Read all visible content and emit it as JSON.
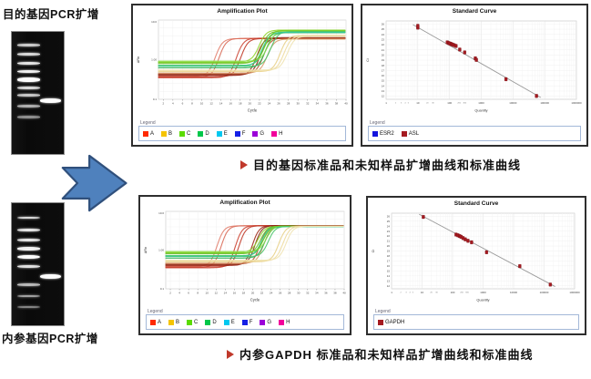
{
  "strings": {
    "legend_title": "Legend"
  },
  "arrow": {
    "fill": "#4f81bd",
    "stroke": "#30507c"
  },
  "gels": {
    "top": {
      "label": "目的基因PCR扩增",
      "ladder": [
        {
          "y": 10,
          "h": 2.5,
          "o": 0.8
        },
        {
          "y": 17.5,
          "h": 2.5,
          "o": 0.85
        },
        {
          "y": 24.5,
          "h": 3,
          "o": 0.9
        },
        {
          "y": 31.5,
          "h": 3,
          "o": 0.95
        },
        {
          "y": 37.5,
          "h": 4.5,
          "o": 1
        },
        {
          "y": 44.5,
          "h": 3,
          "o": 0.85
        },
        {
          "y": 51,
          "h": 2.5,
          "o": 0.78
        },
        {
          "y": 60,
          "h": 2.5,
          "o": 0.68
        },
        {
          "y": 69,
          "h": 2.5,
          "o": 0.55
        }
      ],
      "sample": {
        "y": 54.5,
        "h": 4.5,
        "o": 1
      }
    },
    "bottom": {
      "label": "内参基因PCR扩增",
      "ladder": [
        {
          "y": 11,
          "h": 2.5,
          "o": 0.85
        },
        {
          "y": 21,
          "h": 3,
          "o": 0.9
        },
        {
          "y": 29,
          "h": 3,
          "o": 0.9
        },
        {
          "y": 36,
          "h": 3.5,
          "o": 0.95
        },
        {
          "y": 42.5,
          "h": 4.5,
          "o": 1
        },
        {
          "y": 51,
          "h": 3,
          "o": 0.88
        },
        {
          "y": 66,
          "h": 2.5,
          "o": 0.72
        },
        {
          "y": 75,
          "h": 2.5,
          "o": 0.62
        },
        {
          "y": 84,
          "h": 2.5,
          "o": 0.5
        }
      ],
      "sample": {
        "y": 58,
        "h": 5,
        "o": 1
      }
    }
  },
  "captions": [
    {
      "text": "目的基因标准品和未知样品扩增曲线和标准曲线"
    },
    {
      "text": "内参GAPDH 标准品和未知样品扩增曲线和标准曲线"
    }
  ],
  "chart_data": [
    {
      "type": "line",
      "title": "Amplification Plot",
      "xlabel": "Cycle",
      "ylabel": "ΔRn",
      "xlim": [
        1,
        40
      ],
      "x_ticks": [
        2,
        4,
        6,
        8,
        10,
        12,
        14,
        16,
        18,
        20,
        22,
        24,
        26,
        28,
        30,
        32,
        34,
        36,
        38,
        40
      ],
      "y_ticks": [
        "10.0",
        "1.00",
        "0.1"
      ],
      "ylog_range": [
        0.1,
        10
      ],
      "series": [
        {
          "color": "#e2806e",
          "ct": 12.8,
          "base": 0.38,
          "plateau": 3.4
        },
        {
          "color": "#d96a58",
          "ct": 13.6,
          "base": 0.36,
          "plateau": 3.45
        },
        {
          "color": "#cc4433",
          "ct": 17.2,
          "base": 0.35,
          "plateau": 3.5
        },
        {
          "color": "#c03a28",
          "ct": 18.1,
          "base": 0.37,
          "plateau": 3.42
        },
        {
          "color": "#9e2a1a",
          "ct": 21.4,
          "base": 0.4,
          "plateau": 3.6
        },
        {
          "color": "#8a2315",
          "ct": 22.1,
          "base": 0.42,
          "plateau": 3.55
        },
        {
          "color": "#b3502f",
          "ct": 22.8,
          "base": 0.44,
          "plateau": 3.5
        },
        {
          "color": "#d89a6a",
          "ct": 23.6,
          "base": 0.46,
          "plateau": 3.3
        },
        {
          "color": "#8fd42a",
          "ct": 21.9,
          "base": 0.88,
          "plateau": 5.6
        },
        {
          "color": "#6abf2a",
          "ct": 22.4,
          "base": 0.8,
          "plateau": 5.3
        },
        {
          "color": "#56c23c",
          "ct": 22.9,
          "base": 0.72,
          "plateau": 5.0
        },
        {
          "color": "#2fae52",
          "ct": 23.3,
          "base": 0.62,
          "plateau": 4.8
        },
        {
          "color": "#8ddd55",
          "ct": 23.8,
          "base": 0.92,
          "plateau": 5.4
        },
        {
          "color": "#49c46a",
          "ct": 24.3,
          "base": 0.68,
          "plateau": 5.1
        },
        {
          "color": "#2fc9a0",
          "ct": 22.6,
          "base": 0.7,
          "plateau": 4.9
        },
        {
          "color": "#77cc22",
          "ct": 23.1,
          "base": 0.85,
          "plateau": 5.5
        },
        {
          "color": "#e8d088",
          "ct": 26.3,
          "base": 0.5,
          "plateau": 4.1
        },
        {
          "color": "#eedca0",
          "ct": 27.1,
          "base": 0.52,
          "plateau": 4.0
        },
        {
          "color": "#f0e3b2",
          "ct": 27.8,
          "base": 0.55,
          "plateau": 3.9
        }
      ],
      "legend": [
        {
          "label": "A",
          "color": "#ff2a00"
        },
        {
          "label": "B",
          "color": "#f5c400"
        },
        {
          "label": "C",
          "color": "#5bdb00"
        },
        {
          "label": "D",
          "color": "#00c74a"
        },
        {
          "label": "E",
          "color": "#00c8f0"
        },
        {
          "label": "F",
          "color": "#1520e6"
        },
        {
          "label": "G",
          "color": "#9b00d8"
        },
        {
          "label": "H",
          "color": "#f2009b"
        }
      ]
    },
    {
      "type": "scatter",
      "title": "Standard Curve",
      "xlabel": "Quantity",
      "ylabel": "Ct",
      "x_log_decades": [
        0,
        6
      ],
      "x_tick_labels": [
        "1",
        "10",
        "100",
        "1000",
        "10000",
        "100000",
        "1000000"
      ],
      "x_minor_ticks": [
        2,
        3,
        4,
        5,
        20,
        30,
        200,
        300
      ],
      "y_ticks": [
        26,
        25,
        24,
        23,
        22,
        21,
        20,
        19,
        18,
        17,
        16,
        15,
        14,
        13,
        12
      ],
      "ylim": [
        11.4,
        26.6
      ],
      "marker_color": "#a51a20",
      "line_color": "#9a9a9a",
      "trend_line": [
        [
          7,
          25.9
        ],
        [
          75000,
          11.75
        ]
      ],
      "points": [
        [
          10,
          25.3
        ],
        [
          10,
          25.65
        ],
        [
          85,
          22.45
        ],
        [
          95,
          22.3
        ],
        [
          105,
          22.2
        ],
        [
          115,
          22.1
        ],
        [
          125,
          22.0
        ],
        [
          140,
          21.9
        ],
        [
          160,
          21.75
        ],
        [
          210,
          21.05
        ],
        [
          300,
          20.5
        ],
        [
          650,
          19.35
        ],
        [
          700,
          19.05
        ],
        [
          6000,
          15.3
        ],
        [
          55000,
          12.05
        ]
      ],
      "legend": [
        {
          "label": "ESR2",
          "color": "#1313dd"
        },
        {
          "label": "ASL",
          "color": "#a51a20"
        }
      ]
    },
    {
      "type": "line",
      "title": "Amplification Plot",
      "xlabel": "Cycle",
      "ylabel": "ΔRn",
      "xlim": [
        1,
        40
      ],
      "x_ticks": [
        2,
        4,
        6,
        8,
        10,
        12,
        14,
        16,
        18,
        20,
        22,
        24,
        26,
        28,
        30,
        32,
        34,
        36,
        38,
        40
      ],
      "y_ticks": [
        "10.0",
        "1.00",
        "0.1"
      ],
      "ylog_range": [
        0.1,
        10
      ],
      "series": [
        {
          "color": "#e2806e",
          "ct": 12.2,
          "base": 0.38,
          "plateau": 4.25
        },
        {
          "color": "#d96a58",
          "ct": 13.1,
          "base": 0.36,
          "plateau": 4.25
        },
        {
          "color": "#cc4433",
          "ct": 16.2,
          "base": 0.35,
          "plateau": 4.3
        },
        {
          "color": "#c03a28",
          "ct": 17.0,
          "base": 0.37,
          "plateau": 4.25
        },
        {
          "color": "#9e2a1a",
          "ct": 19.9,
          "base": 0.4,
          "plateau": 4.3
        },
        {
          "color": "#8a2315",
          "ct": 20.5,
          "base": 0.42,
          "plateau": 4.3
        },
        {
          "color": "#b3502f",
          "ct": 21.6,
          "base": 0.44,
          "plateau": 4.2
        },
        {
          "color": "#d89a6a",
          "ct": 22.4,
          "base": 0.46,
          "plateau": 4.15
        },
        {
          "color": "#8fd42a",
          "ct": 21.2,
          "base": 0.88,
          "plateau": 4.1
        },
        {
          "color": "#6abf2a",
          "ct": 21.7,
          "base": 0.8,
          "plateau": 4.15
        },
        {
          "color": "#56c23c",
          "ct": 22.2,
          "base": 0.72,
          "plateau": 4.1
        },
        {
          "color": "#2fae52",
          "ct": 22.6,
          "base": 0.62,
          "plateau": 4.05
        },
        {
          "color": "#8ddd55",
          "ct": 23.0,
          "base": 0.92,
          "plateau": 4.2
        },
        {
          "color": "#49c46a",
          "ct": 23.4,
          "base": 0.68,
          "plateau": 4.1
        },
        {
          "color": "#2fc9a0",
          "ct": 21.9,
          "base": 0.7,
          "plateau": 4.05
        },
        {
          "color": "#77cc22",
          "ct": 22.4,
          "base": 0.85,
          "plateau": 4.2
        },
        {
          "color": "#e8d088",
          "ct": 25.7,
          "base": 0.5,
          "plateau": 4.2
        },
        {
          "color": "#eedca0",
          "ct": 26.6,
          "base": 0.52,
          "plateau": 4.15
        },
        {
          "color": "#f0e3b2",
          "ct": 27.3,
          "base": 0.55,
          "plateau": 4.1
        }
      ],
      "legend": [
        {
          "label": "A",
          "color": "#ff2a00"
        },
        {
          "label": "B",
          "color": "#f5c400"
        },
        {
          "label": "C",
          "color": "#5bdb00"
        },
        {
          "label": "D",
          "color": "#00c74a"
        },
        {
          "label": "E",
          "color": "#00c8f0"
        },
        {
          "label": "F",
          "color": "#1520e6"
        },
        {
          "label": "G",
          "color": "#9b00d8"
        },
        {
          "label": "H",
          "color": "#f2009b"
        }
      ]
    },
    {
      "type": "scatter",
      "title": "Standard Curve",
      "xlabel": "Quantity",
      "ylabel": "Ct",
      "x_log_decades": [
        0,
        6
      ],
      "x_tick_labels": [
        "1",
        "10",
        "100",
        "1000",
        "10000",
        "100000",
        "1000000"
      ],
      "x_minor_ticks": [
        2,
        3,
        4,
        5,
        20,
        30,
        200,
        300
      ],
      "y_ticks": [
        26,
        25,
        24,
        23,
        22,
        21,
        20,
        19,
        18,
        17,
        16,
        15,
        14,
        13,
        12
      ],
      "ylim": [
        11.4,
        26.6
      ],
      "marker_color": "#a51a20",
      "line_color": "#9a9a9a",
      "trend_line": [
        [
          8,
          26.4
        ],
        [
          230000,
          11.85
        ]
      ],
      "points": [
        [
          11,
          25.85
        ],
        [
          130,
          22.3
        ],
        [
          150,
          22.15
        ],
        [
          170,
          22.0
        ],
        [
          190,
          21.85
        ],
        [
          220,
          21.6
        ],
        [
          260,
          21.35
        ],
        [
          320,
          21.05
        ],
        [
          420,
          20.75
        ],
        [
          1300,
          18.75
        ],
        [
          16000,
          15.95
        ],
        [
          160000,
          12.25
        ]
      ],
      "legend": [
        {
          "label": "GAPDH",
          "color": "#a51a20"
        }
      ]
    }
  ]
}
